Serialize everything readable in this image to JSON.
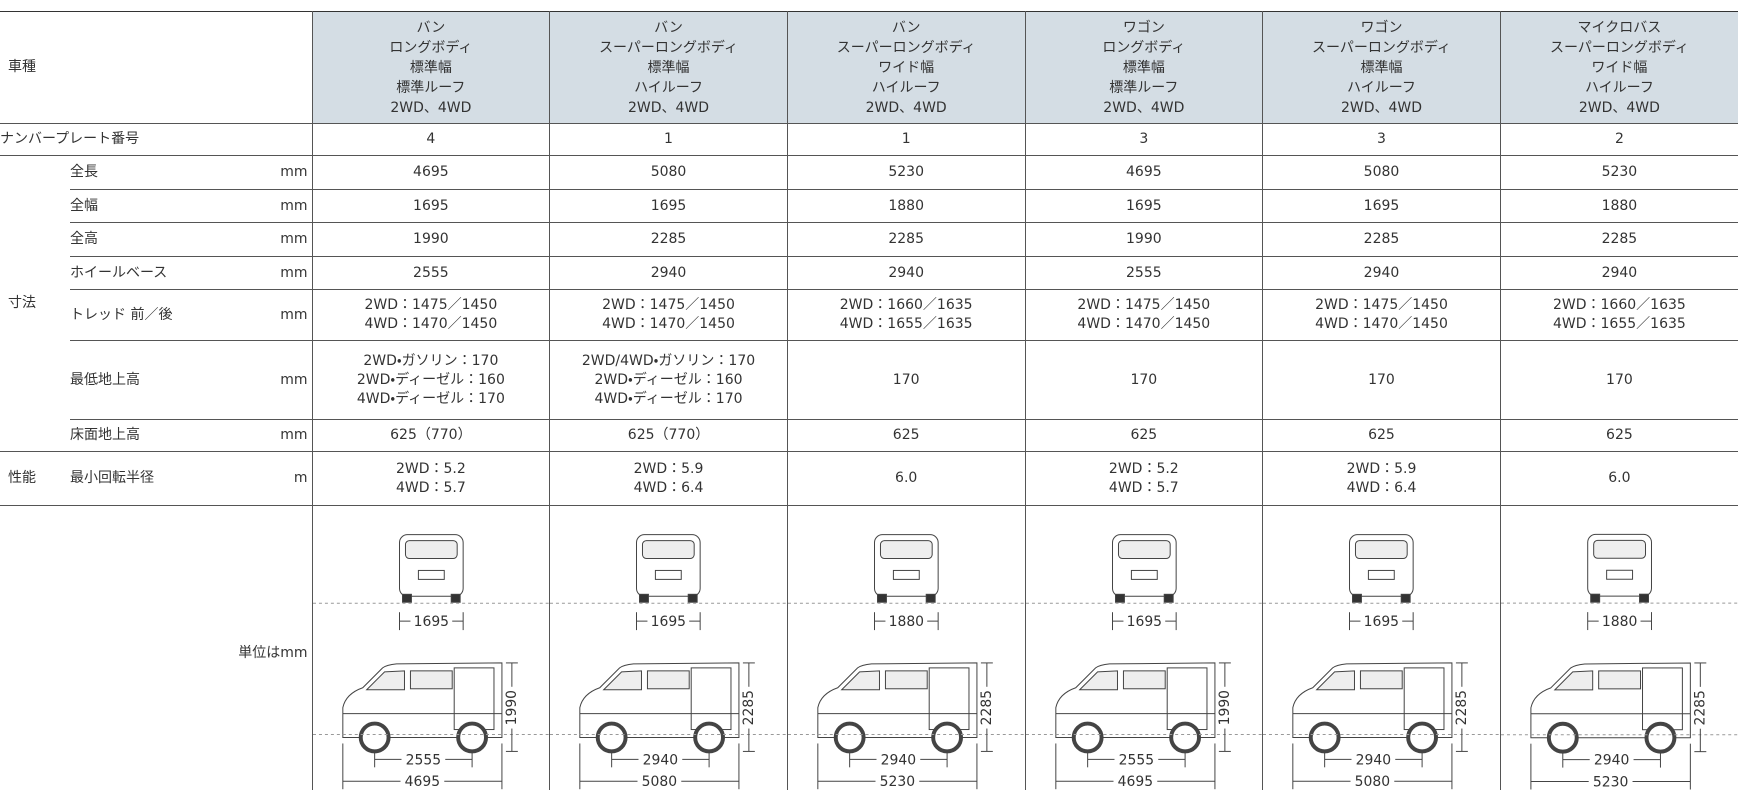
{
  "header_label": "車種",
  "columns": [
    [
      "バン",
      "ロングボディ",
      "標準幅",
      "標準ルーフ",
      "2WD、4WD"
    ],
    [
      "バン",
      "スーパーロングボディ",
      "標準幅",
      "ハイルーフ",
      "2WD、4WD"
    ],
    [
      "バン",
      "スーパーロングボディ",
      "ワイド幅",
      "ハイルーフ",
      "2WD、4WD"
    ],
    [
      "ワゴン",
      "ロングボディ",
      "標準幅",
      "標準ルーフ",
      "2WD、4WD"
    ],
    [
      "ワゴン",
      "スーパーロングボディ",
      "標準幅",
      "ハイルーフ",
      "2WD、4WD"
    ],
    [
      "マイクロバス",
      "スーパーロングボディ",
      "ワイド幅",
      "ハイルーフ",
      "2WD、4WD"
    ]
  ],
  "plate_row": {
    "label": "ナンバープレート番号",
    "cells": [
      "4",
      "1",
      "1",
      "3",
      "3",
      "2"
    ]
  },
  "groups": [
    {
      "label": "寸法",
      "rows": [
        {
          "label": "全長",
          "unit": "mm",
          "cells": [
            [
              "4695"
            ],
            [
              "5080"
            ],
            [
              "5230"
            ],
            [
              "4695"
            ],
            [
              "5080"
            ],
            [
              "5230"
            ]
          ]
        },
        {
          "label": "全幅",
          "unit": "mm",
          "cells": [
            [
              "1695"
            ],
            [
              "1695"
            ],
            [
              "1880"
            ],
            [
              "1695"
            ],
            [
              "1695"
            ],
            [
              "1880"
            ]
          ]
        },
        {
          "label": "全高",
          "unit": "mm",
          "cells": [
            [
              "1990"
            ],
            [
              "2285"
            ],
            [
              "2285"
            ],
            [
              "1990"
            ],
            [
              "2285"
            ],
            [
              "2285"
            ]
          ]
        },
        {
          "label": "ホイールベース",
          "unit": "mm",
          "cells": [
            [
              "2555"
            ],
            [
              "2940"
            ],
            [
              "2940"
            ],
            [
              "2555"
            ],
            [
              "2940"
            ],
            [
              "2940"
            ]
          ]
        },
        {
          "label": "トレッド 前／後",
          "unit": "mm",
          "cells": [
            [
              "2WD：1475／1450",
              "4WD：1470／1450"
            ],
            [
              "2WD：1475／1450",
              "4WD：1470／1450"
            ],
            [
              "2WD：1660／1635",
              "4WD：1655／1635"
            ],
            [
              "2WD：1475／1450",
              "4WD：1470／1450"
            ],
            [
              "2WD：1475／1450",
              "4WD：1470／1450"
            ],
            [
              "2WD：1660／1635",
              "4WD：1655／1635"
            ]
          ]
        },
        {
          "label": "最低地上高",
          "unit": "mm",
          "cells": [
            [
              "2WD・ガソリン：170",
              "2WD・ディーゼル：160",
              "4WD・ディーゼル：170"
            ],
            [
              "2WD/4WD・ガソリン：170",
              "2WD・ディーゼル：160",
              "4WD・ディーゼル：170"
            ],
            [
              "170"
            ],
            [
              "170"
            ],
            [
              "170"
            ],
            [
              "170"
            ]
          ]
        },
        {
          "label": "床面地上高",
          "unit": "mm",
          "cells": [
            [
              "625（770）"
            ],
            [
              "625（770）"
            ],
            [
              "625"
            ],
            [
              "625"
            ],
            [
              "625"
            ],
            [
              "625"
            ]
          ]
        }
      ]
    },
    {
      "label": "性能",
      "rows": [
        {
          "label": "最小回転半径",
          "unit": "m",
          "cells": [
            [
              "2WD：5.2",
              "4WD：5.7"
            ],
            [
              "2WD：5.9",
              "4WD：6.4"
            ],
            [
              "6.0"
            ],
            [
              "2WD：5.2",
              "4WD：5.7"
            ],
            [
              "2WD：5.9",
              "4WD：6.4"
            ],
            [
              "6.0"
            ]
          ]
        }
      ]
    }
  ],
  "diagram_row": {
    "note": "単位はmm",
    "diagrams": [
      {
        "front_width": "1695",
        "height": "1990",
        "wheelbase": "2555",
        "length": "4695"
      },
      {
        "front_width": "1695",
        "height": "2285",
        "wheelbase": "2940",
        "length": "5080"
      },
      {
        "front_width": "1880",
        "height": "2285",
        "wheelbase": "2940",
        "length": "5230"
      },
      {
        "front_width": "1695",
        "height": "1990",
        "wheelbase": "2555",
        "length": "4695"
      },
      {
        "front_width": "1695",
        "height": "2285",
        "wheelbase": "2940",
        "length": "5080"
      },
      {
        "front_width": "1880",
        "height": "2285",
        "wheelbase": "2940",
        "length": "5230"
      }
    ]
  }
}
